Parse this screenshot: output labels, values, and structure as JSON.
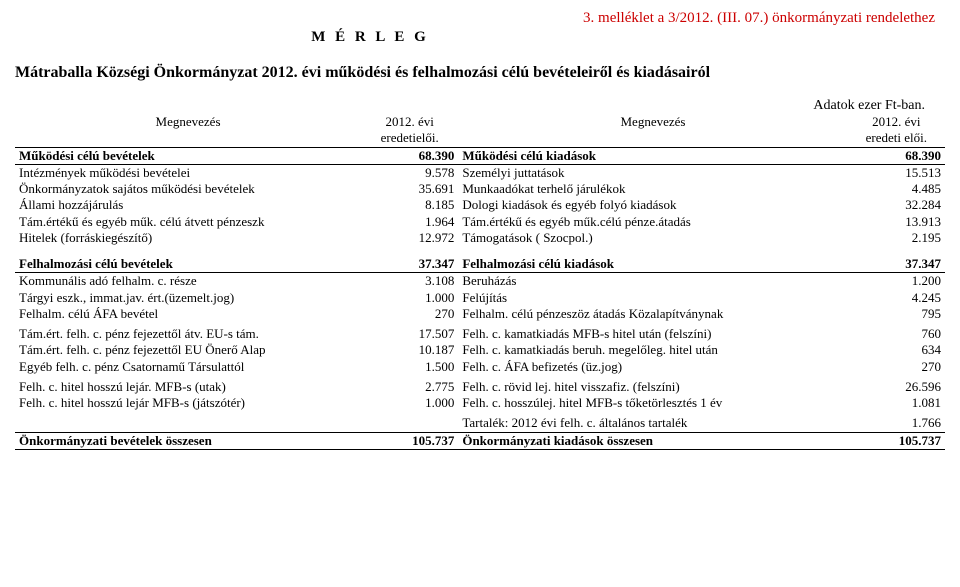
{
  "top_ref": "3. melléklet a 3/2012. (III. 07.) önkormányzati rendelethez",
  "merleg": "M É R L E G",
  "subtitle": "Mátraballa Községi Önkormányzat 2012. évi működési és felhalmozási célú bevételeiről és kiadásairól",
  "unit": "Adatok ezer Ft-ban.",
  "header": {
    "left_name": "Megnevezés",
    "left_col": "2012. évi\neredetielői.",
    "right_name": "Megnevezés",
    "right_col": "2012. évi\neredeti elői."
  },
  "sec1": {
    "left_title": "Működési célú bevételek",
    "left_total": "68.390",
    "right_title": "Működési célú kiadások",
    "right_total": "68.390",
    "rows": [
      {
        "l": "Intézmények működési bevételei",
        "lv": "9.578",
        "r": "Személyi juttatások",
        "rv": "15.513"
      },
      {
        "l": "Önkormányzatok sajátos működési bevételek",
        "lv": "35.691",
        "r": "Munkaadókat terhelő járulékok",
        "rv": "4.485"
      },
      {
        "l": "Állami hozzájárulás",
        "lv": "8.185",
        "r": "Dologi kiadások és egyéb folyó kiadások",
        "rv": "32.284"
      },
      {
        "l": "Tám.értékű és egyéb műk. célú átvett pénzeszk",
        "lv": "1.964",
        "r": "Tám.értékű és egyéb műk.célú pénze.átadás",
        "rv": "13.913"
      },
      {
        "l": "Hitelek (forráskiegészítő)",
        "lv": "12.972",
        "r": "Támogatások  ( Szocpol.)",
        "rv": "2.195"
      }
    ]
  },
  "sec2": {
    "left_title": "Felhalmozási célú bevételek",
    "left_total": "37.347",
    "right_title": "Felhalmozási célú kiadások",
    "right_total": "37.347",
    "rows": [
      {
        "l": "Kommunális adó felhalm. c. része",
        "lv": "3.108",
        "r": "Beruházás",
        "rv": "1.200"
      },
      {
        "l": "Tárgyi eszk., immat.jav. ért.(üzemelt.jog)",
        "lv": "1.000",
        "r": "Felújítás",
        "rv": "4.245"
      },
      {
        "l": "Felhalm. célú ÁFA bevétel",
        "lv": "270",
        "r": "Felhalm. célú pénzeszöz átadás Közalapítványnak",
        "rv": "795"
      }
    ],
    "rows2": [
      {
        "l": "Tám.ért. felh. c. pénz fejezettől átv. EU-s tám.",
        "lv": "17.507",
        "r": "Felh. c. kamatkiadás MFB-s hitel után (felszíni)",
        "rv": "760"
      },
      {
        "l": "Tám.ért. felh. c. pénz fejezettől EU Önerő Alap",
        "lv": "10.187",
        "r": "Felh. c. kamatkiadás beruh. megelőleg. hitel után",
        "rv": "634"
      },
      {
        "l": "Egyéb felh. c. pénz Csatornamű Társulattól",
        "lv": "1.500",
        "r": "Felh. c. ÁFA befizetés (üz.jog)",
        "rv": "270"
      }
    ],
    "rows3": [
      {
        "l": "Felh. c. hitel hosszú lejár. MFB-s (utak)",
        "lv": "2.775",
        "r": "Felh. c. rövid lej. hitel visszafiz. (felszíni)",
        "rv": "26.596"
      },
      {
        "l": "Felh. c. hitel hosszú lejár MFB-s (játszótér)",
        "lv": "1.000",
        "r": "Felh. c. hosszúlej. hitel MFB-s tőketörlesztés 1 év",
        "rv": "1.081"
      }
    ],
    "tartalek": {
      "r": "Tartalék: 2012 évi felh. c. általános tartalék",
      "rv": "1.766"
    }
  },
  "totals": {
    "l": "Önkormányzati bevételek összesen",
    "lv": "105.737",
    "r": "Önkormányzati kiadások összesen",
    "rv": "105.737"
  },
  "colors": {
    "ref": "#cc0000",
    "text": "#000000",
    "bg": "#ffffff"
  }
}
